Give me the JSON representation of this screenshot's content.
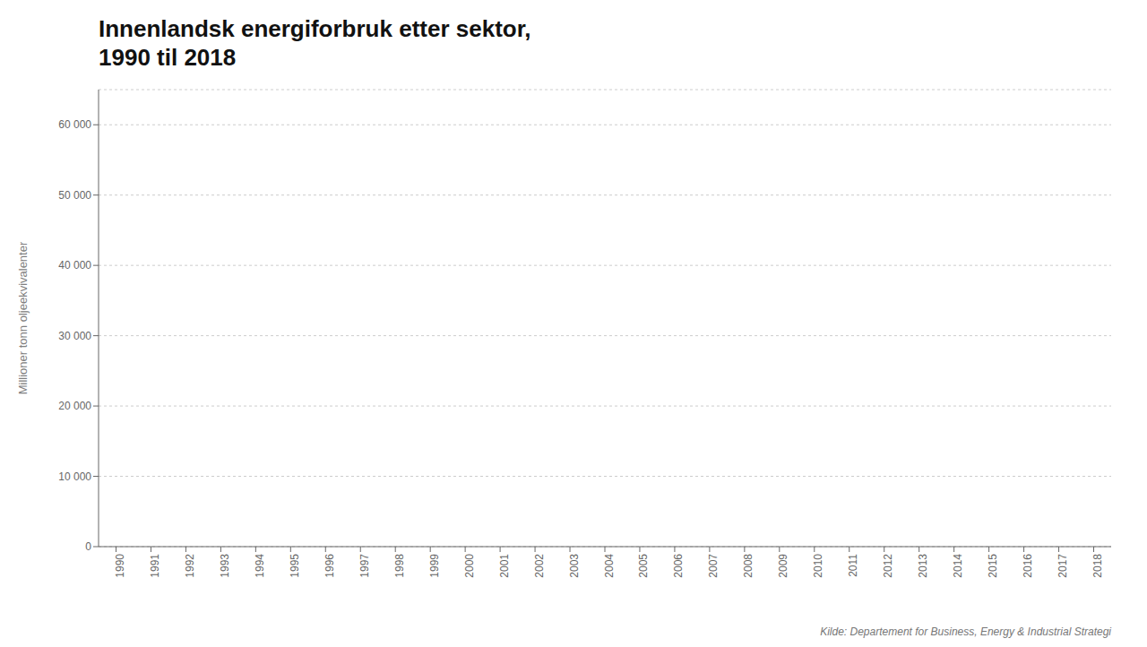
{
  "chart_data": {
    "type": "line",
    "title": "Innenlandsk energiforbruk etter sektor,",
    "subtitle": "1990 til 2018",
    "ylabel": "Millioner tonn oljeekvivalenter",
    "annotations": [
      "Kilde: Departement for Business, Energy & Industrial Strategi"
    ],
    "series": [],
    "xlim": [
      1989.5,
      2018.5
    ],
    "xticks": [
      1990,
      1991,
      1992,
      1993,
      1994,
      1995,
      1996,
      1997,
      1998,
      1999,
      2000,
      2001,
      2002,
      2003,
      2004,
      2005,
      2006,
      2007,
      2008,
      2009,
      2010,
      2011,
      2012,
      2013,
      2014,
      2015,
      2016,
      2017,
      2018
    ],
    "ylim": [
      0,
      65000
    ],
    "yticks": [
      0,
      {
        "value": 10000,
        "label": "10 000"
      },
      {
        "value": 20000,
        "label": "20 000"
      },
      {
        "value": 30000,
        "label": "30 000"
      },
      {
        "value": 40000,
        "label": "40 000"
      },
      {
        "value": 50000,
        "label": "50 000"
      },
      {
        "value": 60000,
        "label": "60 000"
      }
    ],
    "grid": true
  }
}
